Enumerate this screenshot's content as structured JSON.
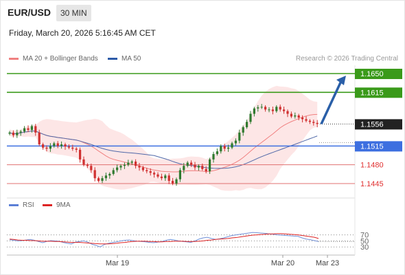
{
  "header": {
    "symbol": "EUR/USD",
    "timeframe": "30 MIN",
    "timestamp": "Friday, March 20, 2026 5:16:45 AM CET"
  },
  "legend": {
    "ma20": "MA 20 + Bollinger Bands",
    "ma50": "MA 50",
    "credit": "Research © 2026 Trading Central",
    "rsi": "RSI",
    "rsi_ma": "9MA"
  },
  "colors": {
    "green": "#3a9a1a",
    "blue": "#3d6fe0",
    "red": "#e07070",
    "arrow": "#2a5fa8",
    "ma20": "#f08080",
    "ma50": "#4f68a8",
    "band": "#fde2e2",
    "candle_up": "#2f7a2f",
    "candle_down": "#d03030",
    "rsi_line": "#7090d8",
    "rsi_ma_line": "#dd2222"
  },
  "chart_data": [
    {
      "type": "candlestick",
      "ylim": [
        1.141,
        1.168
      ],
      "levels": [
        {
          "value": 1.165,
          "label": "1.1650",
          "role": "target",
          "color": "green"
        },
        {
          "value": 1.1615,
          "label": "1.1615",
          "role": "target",
          "color": "green"
        },
        {
          "value": 1.1556,
          "label": "1.1556",
          "role": "current"
        },
        {
          "value": 1.1515,
          "label": "1.1515",
          "role": "pivot",
          "color": "blue"
        },
        {
          "value": 1.148,
          "label": "1.1480",
          "role": "support",
          "color": "red"
        },
        {
          "value": 1.1445,
          "label": "1.1445",
          "role": "support",
          "color": "red"
        }
      ],
      "x_labels": [
        "Mar 19",
        "Mar 20",
        "Mar 23"
      ],
      "close": [
        1.154,
        1.1535,
        1.154,
        1.1542,
        1.1548,
        1.1545,
        1.1552,
        1.154,
        1.1518,
        1.1512,
        1.151,
        1.1515,
        1.152,
        1.1515,
        1.1518,
        1.1514,
        1.1512,
        1.151,
        1.1508,
        1.149,
        1.148,
        1.1478,
        1.147,
        1.1455,
        1.145,
        1.1455,
        1.146,
        1.1463,
        1.147,
        1.1475,
        1.1478,
        1.148,
        1.1484,
        1.1486,
        1.1478,
        1.1475,
        1.147,
        1.1468,
        1.1465,
        1.1462,
        1.1458,
        1.1455,
        1.146,
        1.145,
        1.1445,
        1.1453,
        1.147,
        1.1478,
        1.1484,
        1.148,
        1.1475,
        1.1478,
        1.1472,
        1.1468,
        1.149,
        1.15,
        1.1505,
        1.1515,
        1.151,
        1.1512,
        1.152,
        1.1525,
        1.154,
        1.155,
        1.156,
        1.1575,
        1.1585,
        1.1587,
        1.1588,
        1.1583,
        1.1583,
        1.158,
        1.1588,
        1.1583,
        1.158,
        1.1575,
        1.157,
        1.1572,
        1.1568,
        1.1565,
        1.1562,
        1.156,
        1.1558,
        1.1556
      ]
    },
    {
      "type": "line",
      "ylim": [
        10,
        90
      ],
      "ticks": [
        70,
        50,
        30
      ],
      "series": [
        {
          "name": "RSI",
          "values": [
            54,
            52,
            50,
            51,
            53,
            55,
            52,
            48,
            44,
            48,
            51,
            50,
            49,
            45,
            42,
            40,
            46,
            48,
            50,
            46,
            39,
            35,
            30,
            38,
            42,
            45,
            47,
            50,
            52,
            53,
            51,
            49,
            48,
            47,
            45,
            44,
            46,
            48,
            52,
            55,
            53,
            50,
            48,
            47,
            45,
            50,
            56,
            60,
            62,
            58,
            55,
            57,
            60,
            64,
            68,
            70,
            72,
            74,
            76,
            78,
            77,
            76,
            75,
            73,
            72,
            70,
            69,
            68,
            67,
            66,
            65,
            60,
            56,
            54,
            51,
            48
          ]
        },
        {
          "name": "9MA",
          "values": [
            56,
            55,
            53,
            52,
            52,
            51,
            51,
            50,
            49,
            49,
            49,
            48,
            48,
            47,
            46,
            45,
            45,
            45,
            44,
            43,
            42,
            41,
            40,
            40,
            40,
            41,
            42,
            44,
            45,
            47,
            48,
            49,
            49,
            49,
            48,
            48,
            47,
            47,
            48,
            48,
            49,
            49,
            49,
            48,
            48,
            48,
            49,
            50,
            52,
            53,
            55,
            56,
            57,
            58,
            60,
            61,
            63,
            65,
            67,
            69,
            70,
            71,
            72,
            73,
            73,
            74,
            74,
            73,
            72,
            71,
            70,
            68,
            66,
            64,
            62,
            58
          ]
        }
      ]
    }
  ]
}
